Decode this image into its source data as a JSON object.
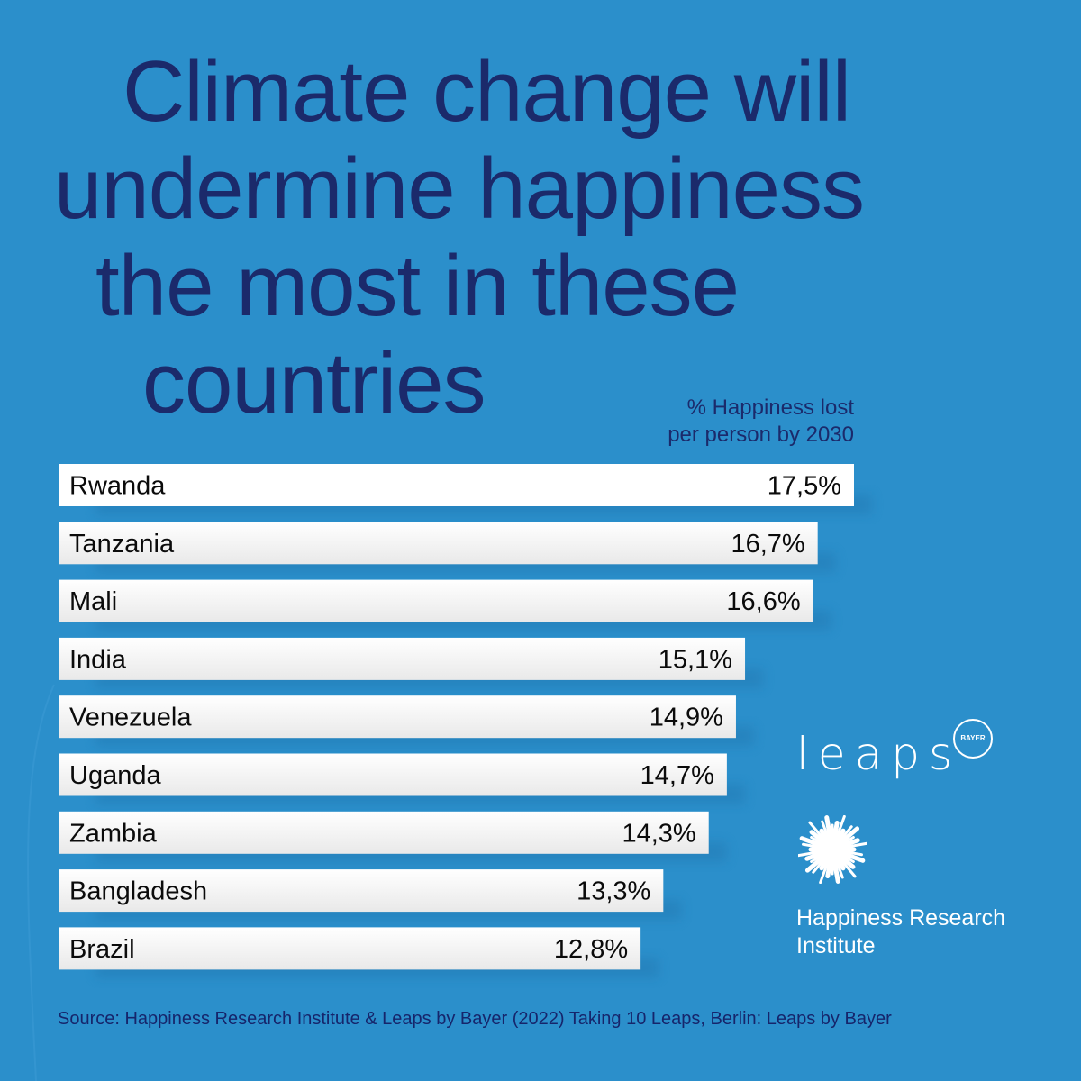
{
  "title": {
    "line1": "Climate change will",
    "line2": "undermine happiness",
    "line3": "the most in these",
    "line4": "countries"
  },
  "measure": {
    "line1": "% Happiness lost",
    "line2": "per person by 2030"
  },
  "chart_data": {
    "type": "bar",
    "orientation": "horizontal",
    "categories": [
      "Rwanda",
      "Tanzania",
      "Mali",
      "India",
      "Venezuela",
      "Uganda",
      "Zambia",
      "Bangladesh",
      "Brazil"
    ],
    "values": [
      17.5,
      16.7,
      16.6,
      15.1,
      14.9,
      14.7,
      14.3,
      13.3,
      12.8
    ],
    "value_labels": [
      "17,5%",
      "16,7%",
      "16,6%",
      "15,1%",
      "14,9%",
      "14,7%",
      "14,3%",
      "13,3%",
      "12,8%"
    ],
    "title": "",
    "xlabel": "% Happiness lost per person by 2030",
    "ylabel": "",
    "grid": false,
    "bar_color": "#ffffff"
  },
  "brands": {
    "leaps": "leaps",
    "bayer": "BAYER",
    "institute_line1": "Happiness Research",
    "institute_line2": "Institute"
  },
  "source": "Source: Happiness Research Institute & Leaps by Bayer (2022) Taking 10 Leaps, Berlin: Leaps by Bayer",
  "colors": {
    "background": "#2b8fcb",
    "title": "#1b2a6b",
    "bar": "#ffffff"
  }
}
